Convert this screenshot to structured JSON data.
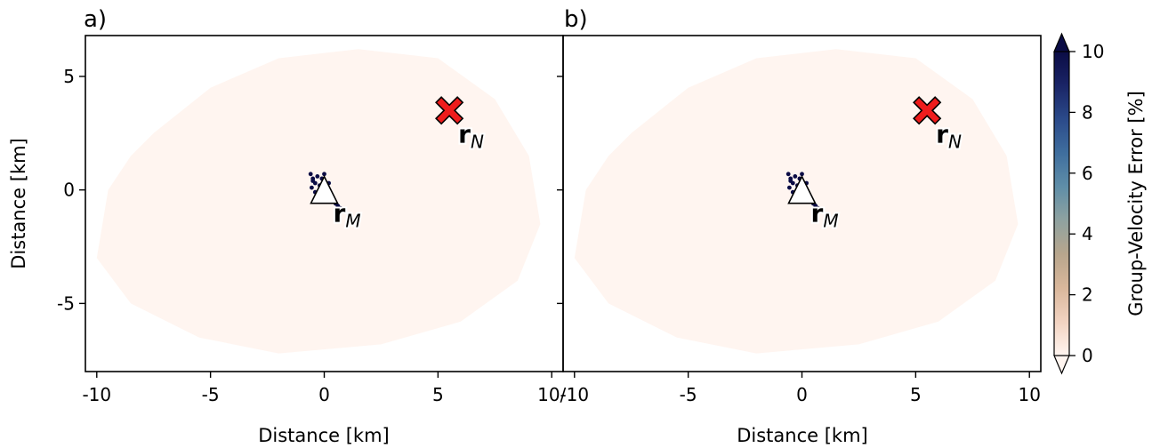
{
  "chart_data": [
    {
      "type": "scatter",
      "panel_label": "a)",
      "xlabel": "Distance [km]",
      "ylabel": "Distance [km]",
      "xlim": [
        -10.5,
        10.5
      ],
      "ylim": [
        -8,
        6.8
      ],
      "xticks": [
        -10,
        -5,
        0,
        5,
        10
      ],
      "xtick_labels": [
        "-10",
        "-5",
        "0",
        "5",
        "10/"
      ],
      "yticks": [
        5,
        0,
        -5
      ],
      "ytick_labels": [
        "5",
        "0",
        "-5"
      ],
      "field": {
        "description_value_percent": 0.3,
        "outline": [
          [
            -7.5,
            2.5
          ],
          [
            -5,
            4.5
          ],
          [
            -2,
            5.8
          ],
          [
            1.5,
            6.2
          ],
          [
            5,
            5.8
          ],
          [
            7.5,
            4
          ],
          [
            9,
            1.5
          ],
          [
            9.5,
            -1.5
          ],
          [
            8.5,
            -4
          ],
          [
            6,
            -5.8
          ],
          [
            2.5,
            -6.8
          ],
          [
            -2,
            -7.2
          ],
          [
            -5.5,
            -6.5
          ],
          [
            -8.5,
            -5
          ],
          [
            -10,
            -3
          ],
          [
            -9.5,
            0
          ],
          [
            -8.5,
            1.5
          ]
        ]
      },
      "high_error_points": [
        [
          -0.6,
          0.7
        ],
        [
          -0.5,
          0.5
        ],
        [
          -0.4,
          0.3
        ],
        [
          -0.55,
          0.1
        ],
        [
          -0.3,
          0.6
        ],
        [
          -0.2,
          0.2
        ],
        [
          -0.4,
          -0.1
        ],
        [
          -0.1,
          0.5
        ],
        [
          0.2,
          0.3
        ],
        [
          0.3,
          -0.2
        ],
        [
          0.4,
          -0.4
        ],
        [
          0.1,
          -0.5
        ],
        [
          -0.3,
          -0.4
        ],
        [
          0.5,
          -0.6
        ],
        [
          0.6,
          -0.7
        ],
        [
          0.7,
          -0.8
        ],
        [
          -0.5,
          0.4
        ],
        [
          0,
          0.7
        ]
      ],
      "markers": [
        {
          "type": "receiver",
          "symbol": "triangle",
          "x": 0,
          "y": 0,
          "label": "r",
          "sub": "M"
        },
        {
          "type": "source",
          "symbol": "X",
          "x": 5.5,
          "y": 3.5,
          "label": "r",
          "sub": "N"
        }
      ]
    },
    {
      "type": "scatter",
      "panel_label": "b)",
      "xlabel": "Distance [km]",
      "xlim": [
        -10.5,
        10.5
      ],
      "ylim": [
        -8,
        6.8
      ],
      "xticks": [
        -10,
        -5,
        0,
        5,
        10
      ],
      "xtick_labels": [
        "-10",
        "-5",
        "0",
        "5",
        "10"
      ],
      "yticks": [
        5,
        0,
        -5
      ],
      "field": {
        "description_value_percent": 0.3,
        "outline": [
          [
            -7.5,
            2.5
          ],
          [
            -5,
            4.5
          ],
          [
            -2,
            5.8
          ],
          [
            1.5,
            6.2
          ],
          [
            5,
            5.8
          ],
          [
            7.5,
            4
          ],
          [
            9,
            1.5
          ],
          [
            9.5,
            -1.5
          ],
          [
            8.5,
            -4
          ],
          [
            6,
            -5.8
          ],
          [
            2.5,
            -6.8
          ],
          [
            -2,
            -7.2
          ],
          [
            -5.5,
            -6.5
          ],
          [
            -8.5,
            -5
          ],
          [
            -10,
            -3
          ],
          [
            -9.5,
            0
          ],
          [
            -8.5,
            1.5
          ]
        ]
      },
      "high_error_points": [
        [
          -0.6,
          0.7
        ],
        [
          -0.5,
          0.5
        ],
        [
          -0.4,
          0.3
        ],
        [
          -0.55,
          0.1
        ],
        [
          -0.3,
          0.6
        ],
        [
          -0.2,
          0.2
        ],
        [
          -0.4,
          -0.1
        ],
        [
          -0.1,
          0.5
        ],
        [
          0.2,
          0.3
        ],
        [
          0.3,
          -0.2
        ],
        [
          0.4,
          -0.4
        ],
        [
          0.1,
          -0.5
        ],
        [
          -0.3,
          -0.4
        ],
        [
          0.5,
          -0.6
        ],
        [
          0.6,
          -0.7
        ],
        [
          0.7,
          -0.8
        ],
        [
          -0.5,
          0.4
        ],
        [
          0,
          0.7
        ]
      ],
      "markers": [
        {
          "type": "receiver",
          "symbol": "triangle",
          "x": 0,
          "y": 0,
          "label": "r",
          "sub": "M"
        },
        {
          "type": "source",
          "symbol": "X",
          "x": 5.5,
          "y": 3.5,
          "label": "r",
          "sub": "N"
        }
      ]
    }
  ],
  "colorbar": {
    "label": "Group-Velocity Error [%]",
    "range": [
      0,
      10
    ],
    "ticks": [
      0,
      2,
      4,
      6,
      8,
      10
    ],
    "tick_labels": [
      "0",
      "2",
      "4",
      "6",
      "8",
      "10"
    ],
    "extend": "both",
    "colors": [
      "#fff5f0",
      "#f2d3c1",
      "#d9b79b",
      "#b8a68d",
      "#8fa2a0",
      "#5f8ea8",
      "#3f6e9e",
      "#2b4a8a",
      "#1a2466",
      "#0b0c45"
    ]
  }
}
